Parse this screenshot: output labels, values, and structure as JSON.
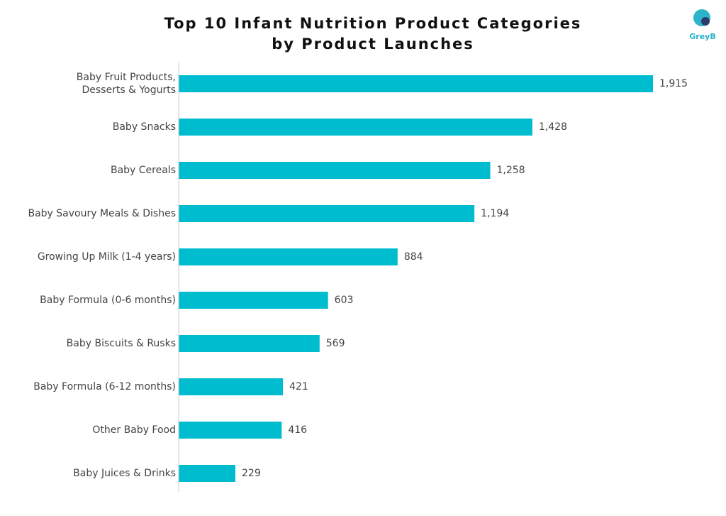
{
  "chart_data": {
    "type": "hbar",
    "title": [
      "Top 10 Infant Nutrition Product Categories",
      "by Product Launches"
    ],
    "logo": "GreyB",
    "categories": [
      [
        "Baby Fruit Products,",
        "Desserts & Yogurts"
      ],
      "Baby Snacks",
      "Baby Cereals",
      "Baby Savoury Meals & Dishes",
      "Growing Up Milk (1-4 years)",
      "Baby Formula (0-6 months)",
      "Baby Biscuits & Rusks",
      "Baby Formula (6-12 months)",
      "Other Baby Food",
      "Baby Juices & Drinks"
    ],
    "values": [
      1915,
      1428,
      1258,
      1194,
      884,
      603,
      569,
      421,
      416,
      229
    ],
    "value_labels": [
      "1,915",
      "1,428",
      "1,258",
      "1,194",
      "884",
      "603",
      "569",
      "421",
      "416",
      "229"
    ],
    "color": "#00bccf"
  }
}
